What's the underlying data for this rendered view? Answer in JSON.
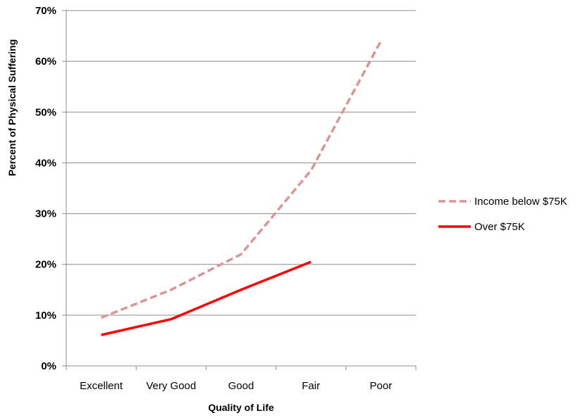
{
  "chart_data": {
    "type": "line",
    "categories": [
      "Excellent",
      "Very Good",
      "Good",
      "Fair",
      "Poor"
    ],
    "series": [
      {
        "name": "Income below $75K",
        "values": [
          9.5,
          15,
          22,
          38.5,
          64
        ],
        "color": "#d99694",
        "style": "dashed"
      },
      {
        "name": "Over $75K",
        "values": [
          6.1,
          9.2,
          15,
          20.5,
          null
        ],
        "color": "#ff0000",
        "style": "solid"
      }
    ],
    "y_ticks": [
      "0%",
      "10%",
      "20%",
      "30%",
      "40%",
      "50%",
      "60%",
      "70%"
    ],
    "xlabel": "Quality of Life",
    "ylabel": "Percent of Physical Suffering",
    "ylim": [
      0,
      70
    ],
    "grid": true,
    "legend_position": "right"
  }
}
